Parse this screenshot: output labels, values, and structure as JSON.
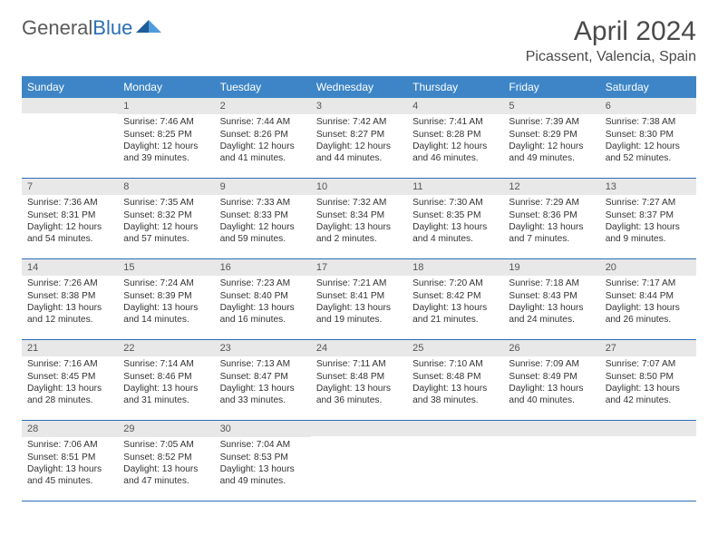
{
  "logo": {
    "text1": "General",
    "text2": "Blue"
  },
  "title": "April 2024",
  "location": "Picassent, Valencia, Spain",
  "day_headers": [
    "Sunday",
    "Monday",
    "Tuesday",
    "Wednesday",
    "Thursday",
    "Friday",
    "Saturday"
  ],
  "colors": {
    "header_bg": "#3d85c6",
    "rule": "#2a6fb5",
    "daynum_bg": "#e8e8e8"
  },
  "weeks": [
    [
      {
        "n": "",
        "sunrise": "",
        "sunset": "",
        "daylight": ""
      },
      {
        "n": "1",
        "sunrise": "Sunrise: 7:46 AM",
        "sunset": "Sunset: 8:25 PM",
        "daylight": "Daylight: 12 hours and 39 minutes."
      },
      {
        "n": "2",
        "sunrise": "Sunrise: 7:44 AM",
        "sunset": "Sunset: 8:26 PM",
        "daylight": "Daylight: 12 hours and 41 minutes."
      },
      {
        "n": "3",
        "sunrise": "Sunrise: 7:42 AM",
        "sunset": "Sunset: 8:27 PM",
        "daylight": "Daylight: 12 hours and 44 minutes."
      },
      {
        "n": "4",
        "sunrise": "Sunrise: 7:41 AM",
        "sunset": "Sunset: 8:28 PM",
        "daylight": "Daylight: 12 hours and 46 minutes."
      },
      {
        "n": "5",
        "sunrise": "Sunrise: 7:39 AM",
        "sunset": "Sunset: 8:29 PM",
        "daylight": "Daylight: 12 hours and 49 minutes."
      },
      {
        "n": "6",
        "sunrise": "Sunrise: 7:38 AM",
        "sunset": "Sunset: 8:30 PM",
        "daylight": "Daylight: 12 hours and 52 minutes."
      }
    ],
    [
      {
        "n": "7",
        "sunrise": "Sunrise: 7:36 AM",
        "sunset": "Sunset: 8:31 PM",
        "daylight": "Daylight: 12 hours and 54 minutes."
      },
      {
        "n": "8",
        "sunrise": "Sunrise: 7:35 AM",
        "sunset": "Sunset: 8:32 PM",
        "daylight": "Daylight: 12 hours and 57 minutes."
      },
      {
        "n": "9",
        "sunrise": "Sunrise: 7:33 AM",
        "sunset": "Sunset: 8:33 PM",
        "daylight": "Daylight: 12 hours and 59 minutes."
      },
      {
        "n": "10",
        "sunrise": "Sunrise: 7:32 AM",
        "sunset": "Sunset: 8:34 PM",
        "daylight": "Daylight: 13 hours and 2 minutes."
      },
      {
        "n": "11",
        "sunrise": "Sunrise: 7:30 AM",
        "sunset": "Sunset: 8:35 PM",
        "daylight": "Daylight: 13 hours and 4 minutes."
      },
      {
        "n": "12",
        "sunrise": "Sunrise: 7:29 AM",
        "sunset": "Sunset: 8:36 PM",
        "daylight": "Daylight: 13 hours and 7 minutes."
      },
      {
        "n": "13",
        "sunrise": "Sunrise: 7:27 AM",
        "sunset": "Sunset: 8:37 PM",
        "daylight": "Daylight: 13 hours and 9 minutes."
      }
    ],
    [
      {
        "n": "14",
        "sunrise": "Sunrise: 7:26 AM",
        "sunset": "Sunset: 8:38 PM",
        "daylight": "Daylight: 13 hours and 12 minutes."
      },
      {
        "n": "15",
        "sunrise": "Sunrise: 7:24 AM",
        "sunset": "Sunset: 8:39 PM",
        "daylight": "Daylight: 13 hours and 14 minutes."
      },
      {
        "n": "16",
        "sunrise": "Sunrise: 7:23 AM",
        "sunset": "Sunset: 8:40 PM",
        "daylight": "Daylight: 13 hours and 16 minutes."
      },
      {
        "n": "17",
        "sunrise": "Sunrise: 7:21 AM",
        "sunset": "Sunset: 8:41 PM",
        "daylight": "Daylight: 13 hours and 19 minutes."
      },
      {
        "n": "18",
        "sunrise": "Sunrise: 7:20 AM",
        "sunset": "Sunset: 8:42 PM",
        "daylight": "Daylight: 13 hours and 21 minutes."
      },
      {
        "n": "19",
        "sunrise": "Sunrise: 7:18 AM",
        "sunset": "Sunset: 8:43 PM",
        "daylight": "Daylight: 13 hours and 24 minutes."
      },
      {
        "n": "20",
        "sunrise": "Sunrise: 7:17 AM",
        "sunset": "Sunset: 8:44 PM",
        "daylight": "Daylight: 13 hours and 26 minutes."
      }
    ],
    [
      {
        "n": "21",
        "sunrise": "Sunrise: 7:16 AM",
        "sunset": "Sunset: 8:45 PM",
        "daylight": "Daylight: 13 hours and 28 minutes."
      },
      {
        "n": "22",
        "sunrise": "Sunrise: 7:14 AM",
        "sunset": "Sunset: 8:46 PM",
        "daylight": "Daylight: 13 hours and 31 minutes."
      },
      {
        "n": "23",
        "sunrise": "Sunrise: 7:13 AM",
        "sunset": "Sunset: 8:47 PM",
        "daylight": "Daylight: 13 hours and 33 minutes."
      },
      {
        "n": "24",
        "sunrise": "Sunrise: 7:11 AM",
        "sunset": "Sunset: 8:48 PM",
        "daylight": "Daylight: 13 hours and 36 minutes."
      },
      {
        "n": "25",
        "sunrise": "Sunrise: 7:10 AM",
        "sunset": "Sunset: 8:48 PM",
        "daylight": "Daylight: 13 hours and 38 minutes."
      },
      {
        "n": "26",
        "sunrise": "Sunrise: 7:09 AM",
        "sunset": "Sunset: 8:49 PM",
        "daylight": "Daylight: 13 hours and 40 minutes."
      },
      {
        "n": "27",
        "sunrise": "Sunrise: 7:07 AM",
        "sunset": "Sunset: 8:50 PM",
        "daylight": "Daylight: 13 hours and 42 minutes."
      }
    ],
    [
      {
        "n": "28",
        "sunrise": "Sunrise: 7:06 AM",
        "sunset": "Sunset: 8:51 PM",
        "daylight": "Daylight: 13 hours and 45 minutes."
      },
      {
        "n": "29",
        "sunrise": "Sunrise: 7:05 AM",
        "sunset": "Sunset: 8:52 PM",
        "daylight": "Daylight: 13 hours and 47 minutes."
      },
      {
        "n": "30",
        "sunrise": "Sunrise: 7:04 AM",
        "sunset": "Sunset: 8:53 PM",
        "daylight": "Daylight: 13 hours and 49 minutes."
      },
      {
        "n": "",
        "sunrise": "",
        "sunset": "",
        "daylight": ""
      },
      {
        "n": "",
        "sunrise": "",
        "sunset": "",
        "daylight": ""
      },
      {
        "n": "",
        "sunrise": "",
        "sunset": "",
        "daylight": ""
      },
      {
        "n": "",
        "sunrise": "",
        "sunset": "",
        "daylight": ""
      }
    ]
  ]
}
